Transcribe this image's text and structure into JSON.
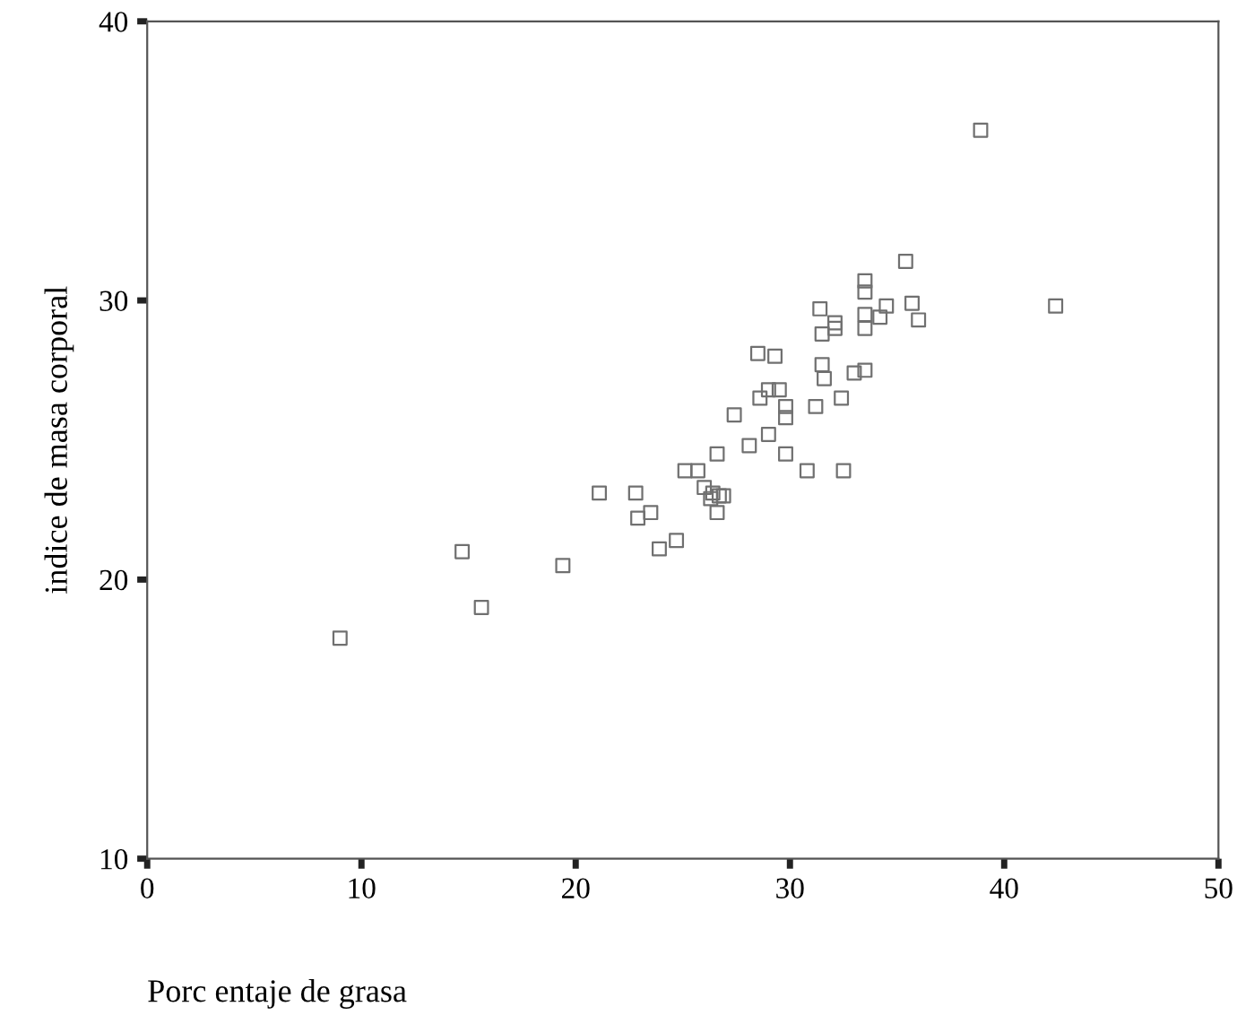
{
  "chart_data": {
    "type": "scatter",
    "xlabel": "Porc entaje de grasa",
    "ylabel": "indice de masa corporal",
    "xlim": [
      0,
      50
    ],
    "ylim": [
      10,
      40
    ],
    "xticks": [
      0,
      10,
      20,
      30,
      40,
      50
    ],
    "yticks": [
      10,
      20,
      30,
      40
    ],
    "grid": false,
    "marker": "square",
    "series": [
      {
        "color": "#707070",
        "x": [
          9.0,
          14.7,
          15.6,
          19.4,
          21.1,
          22.8,
          22.9,
          23.5,
          23.9,
          24.7,
          25.1,
          25.7,
          26.0,
          26.3,
          26.4,
          26.7,
          26.9,
          26.6,
          26.6,
          27.4,
          28.1,
          28.5,
          29.3,
          28.6,
          29.0,
          29.5,
          29.0,
          29.8,
          29.8,
          29.8,
          30.8,
          31.2,
          31.4,
          31.5,
          31.5,
          31.6,
          32.1,
          32.1,
          32.4,
          32.5,
          33.0,
          33.5,
          33.5,
          33.5,
          33.5,
          33.5,
          34.2,
          34.5,
          35.4,
          35.7,
          36.0,
          38.9,
          42.4
        ],
        "values": [
          17.9,
          21.0,
          19.0,
          20.5,
          23.1,
          23.1,
          22.2,
          22.4,
          21.1,
          21.4,
          23.9,
          23.9,
          23.3,
          22.9,
          23.1,
          23.0,
          23.0,
          22.4,
          24.5,
          25.9,
          24.8,
          28.1,
          28.0,
          26.5,
          26.8,
          26.8,
          25.2,
          26.2,
          25.8,
          24.5,
          23.9,
          26.2,
          29.7,
          28.8,
          27.7,
          27.2,
          29.2,
          29.0,
          26.5,
          23.9,
          27.4,
          27.5,
          30.7,
          30.3,
          29.5,
          29.0,
          29.4,
          29.8,
          31.4,
          29.9,
          29.3,
          36.1,
          29.8
        ]
      }
    ]
  }
}
